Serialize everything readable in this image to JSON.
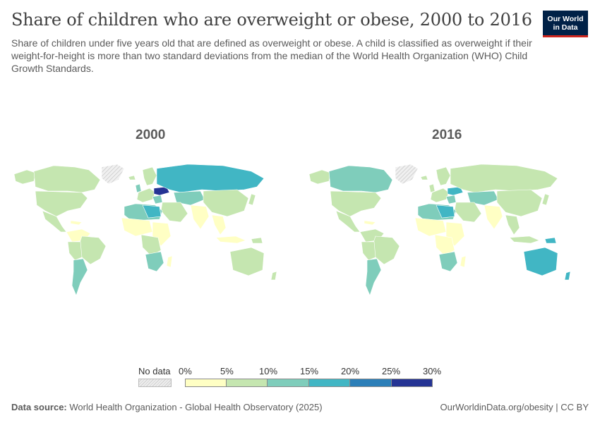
{
  "header": {
    "title": "Share of children who are overweight or obese, 2000 to 2016",
    "subtitle": "Share of children under five years old that are defined as overweight or obese. A child is classified as overweight if their weight-for-height is more than two standard deviations from the median of the World Health Organization (WHO) Child Growth Standards.",
    "logo_line1": "Our World",
    "logo_line2": "in Data"
  },
  "maps": {
    "left_year": "2000",
    "right_year": "2016"
  },
  "legend": {
    "nodata_label": "No data",
    "ticks": [
      "0%",
      "5%",
      "10%",
      "15%",
      "20%",
      "25%",
      "30%"
    ],
    "colors": [
      "#ffffc4",
      "#c5e6b0",
      "#7fcdbb",
      "#41b6c4",
      "#2c7fb8",
      "#253494"
    ],
    "nodata_color": "#e0e0e0"
  },
  "footer": {
    "source_label": "Data source:",
    "source_text": "World Health Organization - Global Health Observatory (2025)",
    "url_text": "OurWorldinData.org/obesity | CC BY"
  }
}
